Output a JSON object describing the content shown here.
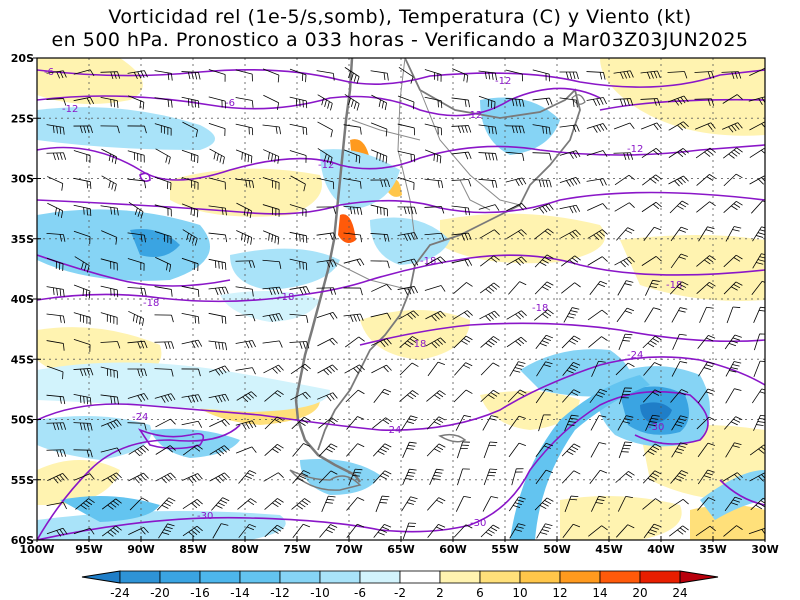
{
  "title": {
    "line1": "Vorticidad rel (1e-5/s,somb), Temperatura (C) y Viento (kt)",
    "line2": "en 500 hPa. Pronostico a 033 horas - Verificando a Mar03Z03JUN2025"
  },
  "axes": {
    "lat_labels": [
      "20S",
      "25S",
      "30S",
      "35S",
      "40S",
      "45S",
      "50S",
      "55S",
      "60S"
    ],
    "lon_labels": [
      "100W",
      "95W",
      "90W",
      "85W",
      "80W",
      "75W",
      "70W",
      "65W",
      "60W",
      "55W",
      "50W",
      "45W",
      "40W",
      "35W",
      "30W"
    ],
    "grid": "dotted"
  },
  "isotherms": [
    {
      "value": -6,
      "label": "-6"
    },
    {
      "value": -12,
      "label": "-12"
    },
    {
      "value": -18,
      "label": "-18"
    },
    {
      "value": -24,
      "label": "-24"
    },
    {
      "value": -30,
      "label": "-30"
    }
  ],
  "colorbar": {
    "labels": [
      "-24",
      "-20",
      "-16",
      "-14",
      "-12",
      "-10",
      "-6",
      "-2",
      "2",
      "6",
      "10",
      "12",
      "14",
      "20",
      "24"
    ],
    "colors": [
      "#1f7ec8",
      "#2e93d6",
      "#3aa4e2",
      "#4db6ec",
      "#63c4f0",
      "#86d4f5",
      "#a9e3f9",
      "#d2f3fc",
      "#ffffff",
      "#fff3b0",
      "#ffe07a",
      "#ffc64a",
      "#ff9a1e",
      "#ff5a0a",
      "#e81e00",
      "#b8000c"
    ]
  },
  "colors": {
    "isotherm": "#8a16c8",
    "coast": "#7a7a7a",
    "barb": "#000000",
    "grid": "#555555"
  }
}
